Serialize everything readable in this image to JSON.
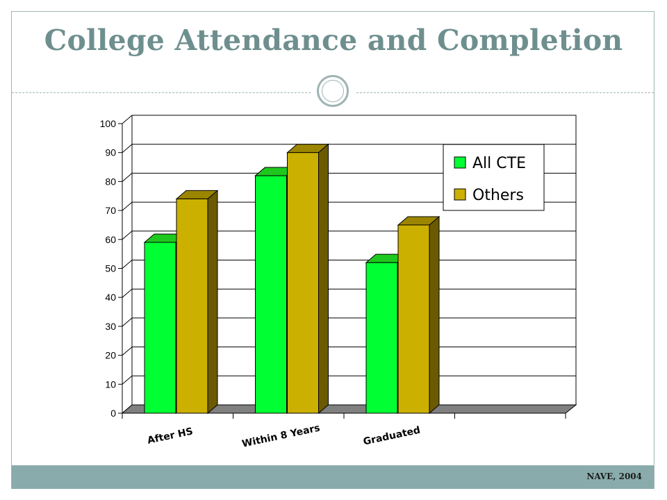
{
  "slide": {
    "title": "College Attendance and Completion",
    "source": "NAVE, 2004"
  },
  "colors": {
    "accent": "#8aabab",
    "title": "#6f8f8f"
  },
  "chart_data": {
    "type": "bar",
    "categories": [
      "After HS",
      "Within 8 Years",
      "Graduated"
    ],
    "series": [
      {
        "name": "All CTE",
        "values": [
          59,
          82,
          52
        ],
        "color": "#00ff33",
        "side_color": "#009a1e",
        "top_color": "#1ec81e"
      },
      {
        "name": "Others",
        "values": [
          74,
          90,
          65
        ],
        "color": "#ccb000",
        "side_color": "#6b5a00",
        "top_color": "#9c8600"
      }
    ],
    "yticks": [
      0,
      10,
      20,
      30,
      40,
      50,
      60,
      70,
      80,
      90,
      100
    ],
    "ylim": [
      0,
      100
    ],
    "grid": true,
    "legend": "top-right"
  }
}
